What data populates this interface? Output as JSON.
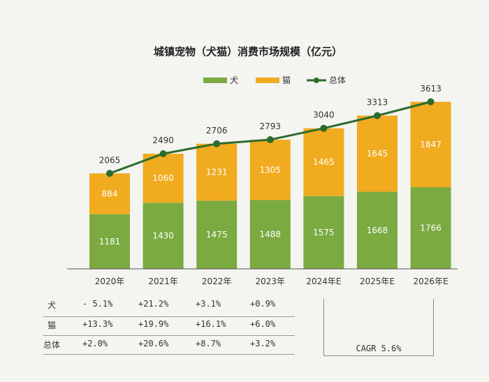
{
  "chart_data": {
    "type": "bar",
    "stacked": true,
    "title": "城镇宠物（犬猫）消费市场规模（亿元）",
    "categories": [
      "2020年",
      "2021年",
      "2022年",
      "2023年",
      "2024年E",
      "2025年E",
      "2026年E"
    ],
    "series": [
      {
        "name": "犬",
        "color": "#7aaa40",
        "values": [
          1181,
          1430,
          1475,
          1488,
          1575,
          1668,
          1766
        ]
      },
      {
        "name": "猫",
        "color": "#f0ab1f",
        "values": [
          884,
          1060,
          1231,
          1305,
          1465,
          1645,
          1847
        ]
      }
    ],
    "line": {
      "name": "总体",
      "color": "#2c6c2e",
      "values": [
        2065,
        2490,
        2706,
        2793,
        3040,
        3313,
        3613
      ]
    },
    "legend_position": "top-center",
    "ylim": [
      0,
      3700
    ],
    "y_axis_visible": false,
    "grid": false
  },
  "growth_table": {
    "rows": [
      {
        "label": "犬",
        "values": [
          "- 5.1%",
          "+21.2%",
          "+3.1%",
          "+0.9%"
        ]
      },
      {
        "label": "猫",
        "values": [
          "+13.3%",
          "+19.9%",
          "+16.1%",
          "+6.0%"
        ]
      },
      {
        "label": "总体",
        "values": [
          "+2.0%",
          "+20.6%",
          "+8.7%",
          "+3.2%"
        ]
      }
    ]
  },
  "cagr": "CAGR 5.6%"
}
